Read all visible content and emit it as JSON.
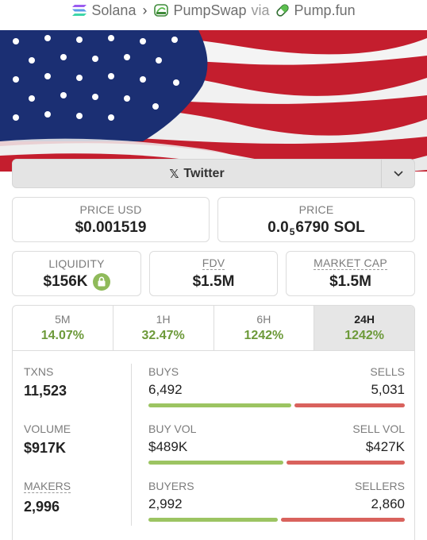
{
  "breadcrumb": {
    "chain": "Solana",
    "dex": "PumpSwap",
    "via": "via",
    "source": "Pump.fun"
  },
  "social": {
    "twitter_label": "Twitter"
  },
  "price_usd": {
    "label": "PRICE USD",
    "value": "$0.001519"
  },
  "price_native": {
    "label": "PRICE",
    "prefix": "0.0",
    "zeros": "5",
    "digits": "6790",
    "unit": "SOL"
  },
  "liquidity": {
    "label": "LIQUIDITY",
    "value": "$156K"
  },
  "fdv": {
    "label": "FDV",
    "value": "$1.5M"
  },
  "market_cap": {
    "label": "MARKET CAP",
    "value": "$1.5M"
  },
  "tabs": [
    {
      "label": "5M",
      "value": "14.07%"
    },
    {
      "label": "1H",
      "value": "32.47%"
    },
    {
      "label": "6H",
      "value": "1242%"
    },
    {
      "label": "24H",
      "value": "1242%"
    }
  ],
  "stats": {
    "txns": {
      "label": "TXNS",
      "value": "11,523"
    },
    "volume": {
      "label": "VOLUME",
      "value": "$917K"
    },
    "makers": {
      "label": "MAKERS",
      "value": "2,996"
    },
    "buys": {
      "left_label": "BUYS",
      "right_label": "SELLS",
      "left": "6,492",
      "right": "5,031",
      "left_fraction": 0.563
    },
    "vol": {
      "left_label": "BUY VOL",
      "right_label": "SELL VOL",
      "left": "$489K",
      "right": "$427K",
      "left_fraction": 0.534
    },
    "people": {
      "left_label": "BUYERS",
      "right_label": "SELLERS",
      "left": "2,992",
      "right": "2,860",
      "left_fraction": 0.511
    }
  },
  "colors": {
    "positive": "#6d9a3a",
    "buy_bar": "#9cc462",
    "sell_bar": "#d9625d"
  }
}
